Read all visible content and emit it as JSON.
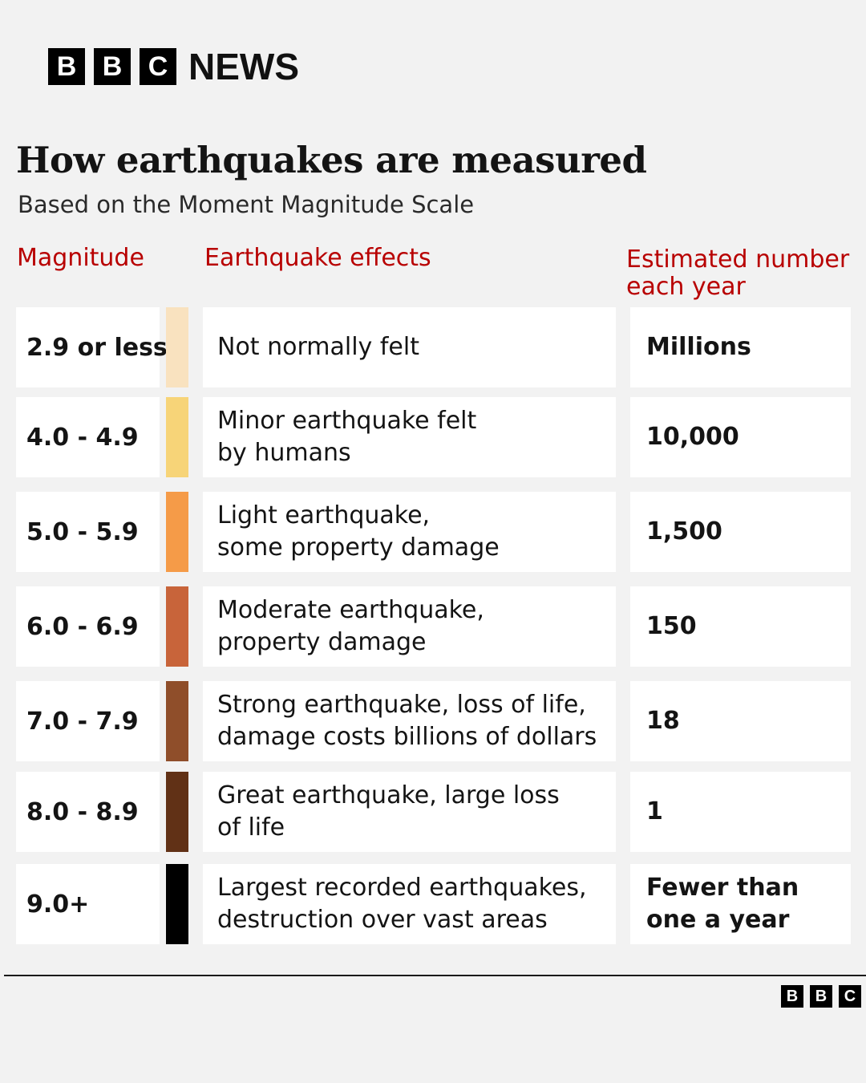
{
  "header": {
    "logo_letters": [
      "B",
      "B",
      "C"
    ],
    "logo_word": "NEWS"
  },
  "title": "How earthquakes are measured",
  "subtitle": "Based on the Moment Magnitude Scale",
  "columns": {
    "magnitude": "Magnitude",
    "effects": "Earthquake effects",
    "estimated_line1": "Estimated number",
    "estimated_line2": "each year"
  },
  "rows": [
    {
      "magnitude": "2.9 or less",
      "color": "#f9e2bf",
      "effect_line1": "Not normally felt",
      "effect_line2": "",
      "count_line1": "Millions",
      "count_line2": ""
    },
    {
      "magnitude": "4.0 - 4.9",
      "color": "#f7d478",
      "effect_line1": "Minor earthquake felt",
      "effect_line2": "by humans",
      "count_line1": "10,000",
      "count_line2": ""
    },
    {
      "magnitude": "5.0 - 5.9",
      "color": "#f59b48",
      "effect_line1": "Light earthquake,",
      "effect_line2": "some property damage",
      "count_line1": "1,500",
      "count_line2": ""
    },
    {
      "magnitude": "6.0 - 6.9",
      "color": "#c8643a",
      "effect_line1": "Moderate earthquake,",
      "effect_line2": "property damage",
      "count_line1": "150",
      "count_line2": ""
    },
    {
      "magnitude": "7.0 - 7.9",
      "color": "#8f4e2a",
      "effect_line1": "Strong earthquake, loss of life,",
      "effect_line2": "damage costs billions of dollars",
      "count_line1": "18",
      "count_line2": ""
    },
    {
      "magnitude": "8.0 - 8.9",
      "color": "#613116",
      "effect_line1": "Great earthquake, large loss",
      "effect_line2": "of life",
      "count_line1": "1",
      "count_line2": ""
    },
    {
      "magnitude": "9.0+",
      "color": "#000000",
      "effect_line1": "Largest recorded earthquakes,",
      "effect_line2": "destruction over vast areas",
      "count_line1": "Fewer than",
      "count_line2": "one a year"
    }
  ],
  "footer": {
    "logo_letters": [
      "B",
      "B",
      "C"
    ]
  }
}
